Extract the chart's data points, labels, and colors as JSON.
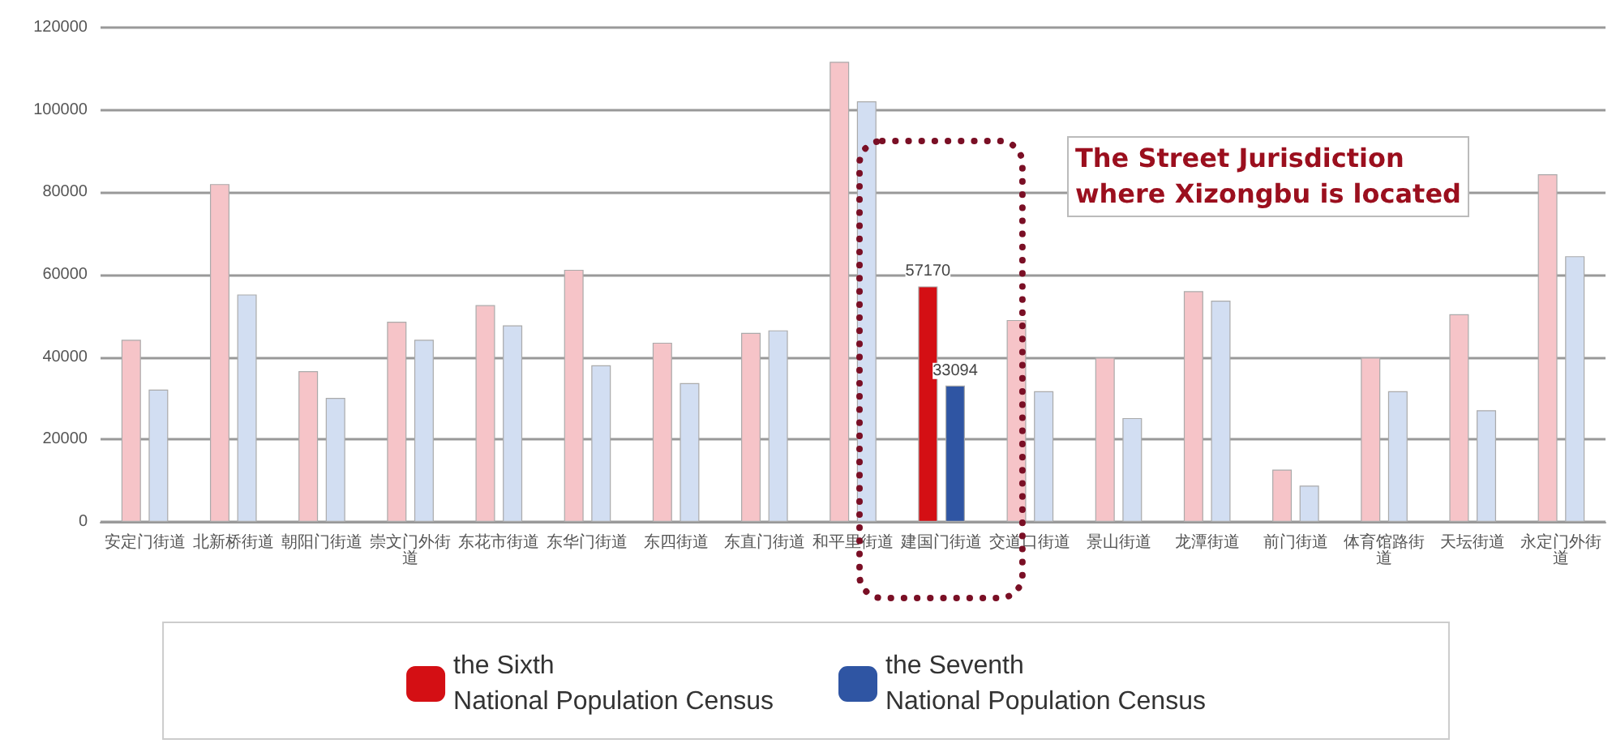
{
  "chart_data": {
    "type": "bar",
    "categories": [
      "安定门街道",
      "北新桥街道",
      "朝阳门街道",
      "崇文门外街道",
      "东花市街道",
      "东华门街道",
      "东四街道",
      "东直门街道",
      "和平里街道",
      "建国门街道",
      "交道口街道",
      "景山街道",
      "龙潭街道",
      "前门街道",
      "体育馆路街道",
      "天坛街道",
      "永定门外街道"
    ],
    "series": [
      {
        "name": "the Sixth\nNational Population Census",
        "color": "#d40f14",
        "colors": [
          "#f6c4c8",
          "#f6c4c8",
          "#f6c4c8",
          "#f6c4c8",
          "#f6c4c8",
          "#f6c4c8",
          "#f6c4c8",
          "#f6c4c8",
          "#f6c4c8",
          "#d40f14",
          "#f6c4c8",
          "#f6c4c8",
          "#f6c4c8",
          "#f6c4c8",
          "#f6c4c8",
          "#f6c4c8",
          "#f6c4c8"
        ],
        "values": [
          44200,
          82000,
          36600,
          48600,
          52600,
          61200,
          43500,
          45900,
          111700,
          57170,
          49000,
          39900,
          56000,
          12700,
          39900,
          50400,
          84400
        ],
        "value_labels": [
          null,
          null,
          null,
          null,
          null,
          null,
          null,
          null,
          null,
          "57170",
          null,
          null,
          null,
          null,
          null,
          null,
          null
        ]
      },
      {
        "name": "the Seventh\nNational Population Census",
        "color": "#2f55a3",
        "colors": [
          "#d2def2",
          "#d2def2",
          "#d2def2",
          "#d2def2",
          "#d2def2",
          "#d2def2",
          "#d2def2",
          "#d2def2",
          "#d2def2",
          "#2f55a3",
          "#d2def2",
          "#d2def2",
          "#d2def2",
          "#d2def2",
          "#d2def2",
          "#d2def2",
          "#d2def2"
        ],
        "values": [
          32100,
          55200,
          30100,
          44200,
          47700,
          38000,
          33700,
          46500,
          102100,
          33094,
          31700,
          25200,
          53700,
          8800,
          31700,
          27100,
          64500
        ],
        "value_labels": [
          null,
          null,
          null,
          null,
          null,
          null,
          null,
          null,
          null,
          "33094",
          null,
          null,
          null,
          null,
          null,
          null,
          null
        ]
      }
    ],
    "ylim": [
      0,
      120000
    ],
    "yticks": [
      0,
      20000,
      40000,
      60000,
      80000,
      100000,
      120000
    ],
    "grid": "y",
    "legend": "bottom",
    "annotations": [
      "The Street Jurisdiction\nwhere Xizongbu is located"
    ]
  }
}
